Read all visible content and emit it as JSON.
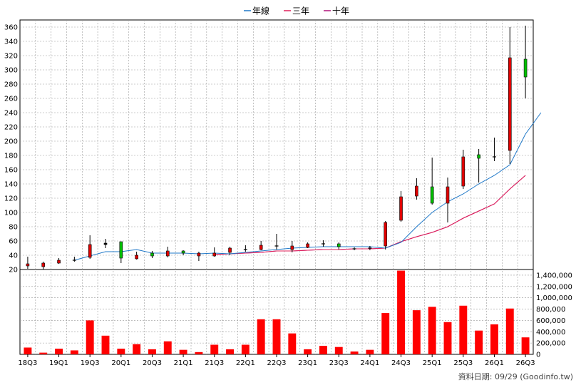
{
  "legend": [
    {
      "label": "年線",
      "color": "#1f78c8"
    },
    {
      "label": "三年",
      "color": "#e0205a"
    },
    {
      "label": "十年",
      "color": "#b0127a"
    }
  ],
  "footer": "資料日期: 09/29 (Goodinfo.tw)",
  "chart_data": [
    {
      "type": "candlestick",
      "ylim": [
        20,
        370
      ],
      "y_ticks": [
        20,
        40,
        60,
        80,
        100,
        120,
        140,
        160,
        180,
        200,
        220,
        240,
        260,
        280,
        300,
        320,
        340,
        360
      ],
      "x_tick_labels": [
        "18Q3",
        "19Q1",
        "19Q3",
        "20Q1",
        "20Q3",
        "21Q1",
        "21Q3",
        "22Q1",
        "22Q3",
        "23Q1",
        "23Q3",
        "24Q1",
        "24Q3",
        "25Q1",
        "25Q3",
        "26Q1",
        "26Q3"
      ],
      "candles": [
        {
          "q": "18Q3",
          "o": 28,
          "c": 25,
          "h": 38,
          "l": 21,
          "color": "red"
        },
        {
          "q": "18Q4",
          "o": 29,
          "c": 24,
          "h": 31,
          "l": 20,
          "color": "red"
        },
        {
          "q": "19Q1",
          "o": 33,
          "c": 29,
          "h": 36,
          "l": 28,
          "color": "red"
        },
        {
          "q": "19Q2",
          "o": 33,
          "c": 32,
          "h": 38,
          "l": 31,
          "color": "black"
        },
        {
          "q": "19Q3",
          "o": 55,
          "c": 37,
          "h": 68,
          "l": 35,
          "color": "red"
        },
        {
          "q": "19Q4",
          "o": 57,
          "c": 55,
          "h": 63,
          "l": 50,
          "color": "black"
        },
        {
          "q": "20Q1",
          "o": 36,
          "c": 59,
          "h": 59,
          "l": 29,
          "color": "green"
        },
        {
          "q": "20Q2",
          "o": 40,
          "c": 35,
          "h": 45,
          "l": 34,
          "color": "red"
        },
        {
          "q": "20Q3",
          "o": 39,
          "c": 43,
          "h": 46,
          "l": 36,
          "color": "green"
        },
        {
          "q": "20Q4",
          "o": 46,
          "c": 39,
          "h": 52,
          "l": 37,
          "color": "red"
        },
        {
          "q": "21Q1",
          "o": 43,
          "c": 46,
          "h": 47,
          "l": 40,
          "color": "green"
        },
        {
          "q": "21Q2",
          "o": 43,
          "c": 39,
          "h": 45,
          "l": 32,
          "color": "red"
        },
        {
          "q": "21Q3",
          "o": 43,
          "c": 39,
          "h": 51,
          "l": 38,
          "color": "red"
        },
        {
          "q": "21Q4",
          "o": 50,
          "c": 44,
          "h": 52,
          "l": 40,
          "color": "red"
        },
        {
          "q": "22Q1",
          "o": 48,
          "c": 48,
          "h": 54,
          "l": 45,
          "color": "black"
        },
        {
          "q": "22Q2",
          "o": 54,
          "c": 48,
          "h": 60,
          "l": 47,
          "color": "red"
        },
        {
          "q": "22Q3",
          "o": 53,
          "c": 53,
          "h": 70,
          "l": 48,
          "color": "black"
        },
        {
          "q": "22Q4",
          "o": 53,
          "c": 48,
          "h": 60,
          "l": 44,
          "color": "red"
        },
        {
          "q": "23Q1",
          "o": 56,
          "c": 51,
          "h": 58,
          "l": 50,
          "color": "red"
        },
        {
          "q": "23Q2",
          "o": 56,
          "c": 56,
          "h": 61,
          "l": 52,
          "color": "black"
        },
        {
          "q": "23Q3",
          "o": 52,
          "c": 56,
          "h": 58,
          "l": 48,
          "color": "green"
        },
        {
          "q": "23Q4",
          "o": 49,
          "c": 49,
          "h": 51,
          "l": 47,
          "color": "black"
        },
        {
          "q": "24Q1",
          "o": 50,
          "c": 50,
          "h": 53,
          "l": 47,
          "color": "black"
        },
        {
          "q": "24Q2",
          "o": 86,
          "c": 53,
          "h": 88,
          "l": 48,
          "color": "red"
        },
        {
          "q": "24Q3",
          "o": 122,
          "c": 89,
          "h": 130,
          "l": 87,
          "color": "red"
        },
        {
          "q": "24Q4",
          "o": 137,
          "c": 123,
          "h": 148,
          "l": 118,
          "color": "red"
        },
        {
          "q": "25Q1",
          "o": 113,
          "c": 136,
          "h": 177,
          "l": 111,
          "color": "green"
        },
        {
          "q": "25Q2",
          "o": 136,
          "c": 113,
          "h": 149,
          "l": 86,
          "color": "red"
        },
        {
          "q": "25Q3",
          "o": 178,
          "c": 137,
          "h": 188,
          "l": 133,
          "color": "red"
        },
        {
          "q": "25Q4",
          "o": 176,
          "c": 181,
          "h": 189,
          "l": 142,
          "color": "green"
        },
        {
          "q": "26Q1",
          "o": 178,
          "c": 178,
          "h": 205,
          "l": 172,
          "color": "black"
        },
        {
          "q": "26Q2",
          "o": 317,
          "c": 187,
          "h": 360,
          "l": 168,
          "color": "red"
        },
        {
          "q": "26Q3",
          "o": 290,
          "c": 315,
          "h": 362,
          "l": 260,
          "color": "green"
        }
      ],
      "series": [
        {
          "name": "年線",
          "color": "#1f78c8",
          "start_index": 3,
          "values": [
            33,
            39,
            45,
            45,
            48,
            43,
            43,
            43,
            42,
            43,
            42,
            44,
            46,
            48,
            50,
            51,
            52,
            52,
            52,
            52,
            50,
            58,
            80,
            100,
            115,
            126,
            140,
            152,
            167,
            210,
            240
          ]
        },
        {
          "name": "三年",
          "color": "#e0205a",
          "start_index": 12,
          "values": [
            41,
            42,
            43,
            44,
            46,
            46,
            47,
            48,
            48,
            49,
            49,
            50,
            59,
            66,
            72,
            80,
            92,
            102,
            112,
            133,
            152
          ]
        },
        {
          "name": "十年",
          "color": "#b0127a",
          "start_index": 12,
          "values": [
            41,
            42,
            43,
            44,
            46,
            46,
            47,
            48,
            48,
            49,
            49,
            50,
            59,
            66,
            72,
            80,
            92,
            102,
            112,
            133,
            152
          ]
        }
      ]
    },
    {
      "type": "bar",
      "ylim": [
        0,
        1500000
      ],
      "y_tick_labels": [
        "0",
        "200,000",
        "400,000",
        "600,000",
        "800,000",
        "1,000,000",
        "1,200,000",
        "1,400,000"
      ],
      "y_tick_values": [
        0,
        200000,
        400000,
        600000,
        800000,
        1000000,
        1200000,
        1400000
      ],
      "values": [
        120000,
        30000,
        100000,
        70000,
        600000,
        330000,
        100000,
        180000,
        90000,
        230000,
        80000,
        40000,
        170000,
        90000,
        170000,
        620000,
        620000,
        370000,
        90000,
        150000,
        130000,
        50000,
        80000,
        730000,
        1480000,
        780000,
        840000,
        570000,
        860000,
        420000,
        530000,
        810000,
        300000
      ]
    }
  ]
}
